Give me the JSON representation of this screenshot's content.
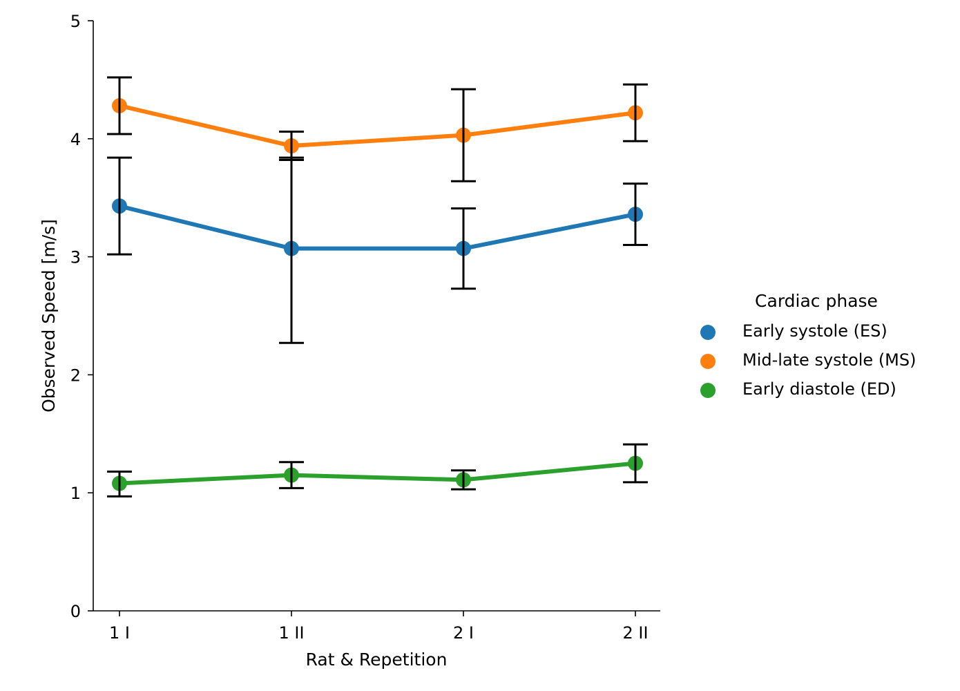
{
  "chart_data": {
    "type": "line",
    "title": "",
    "xlabel": "Rat & Repetition",
    "ylabel": "Observed Speed [m/s]",
    "ylim": [
      0,
      5
    ],
    "yticks": [
      0,
      1,
      2,
      3,
      4,
      5
    ],
    "grid": false,
    "categories": [
      "1 I",
      "1 II",
      "2 I",
      "2 II"
    ],
    "legend": {
      "title": "Cardiac phase",
      "placement": "right"
    },
    "series": [
      {
        "name": "Early systole (ES)",
        "color": "#1f77b4",
        "values": [
          3.43,
          3.07,
          3.07,
          3.36
        ],
        "err_low": [
          3.02,
          2.27,
          2.73,
          3.1
        ],
        "err_high": [
          3.84,
          3.84,
          3.41,
          3.62
        ]
      },
      {
        "name": "Mid-late systole (MS)",
        "color": "#ff7f0e",
        "values": [
          4.28,
          3.94,
          4.03,
          4.22
        ],
        "err_low": [
          4.04,
          3.82,
          3.64,
          3.98
        ],
        "err_high": [
          4.52,
          4.06,
          4.42,
          4.46
        ]
      },
      {
        "name": "Early diastole (ED)",
        "color": "#2ca02c",
        "values": [
          1.08,
          1.15,
          1.11,
          1.25
        ],
        "err_low": [
          0.97,
          1.04,
          1.03,
          1.09
        ],
        "err_high": [
          1.18,
          1.26,
          1.19,
          1.41
        ]
      }
    ]
  }
}
